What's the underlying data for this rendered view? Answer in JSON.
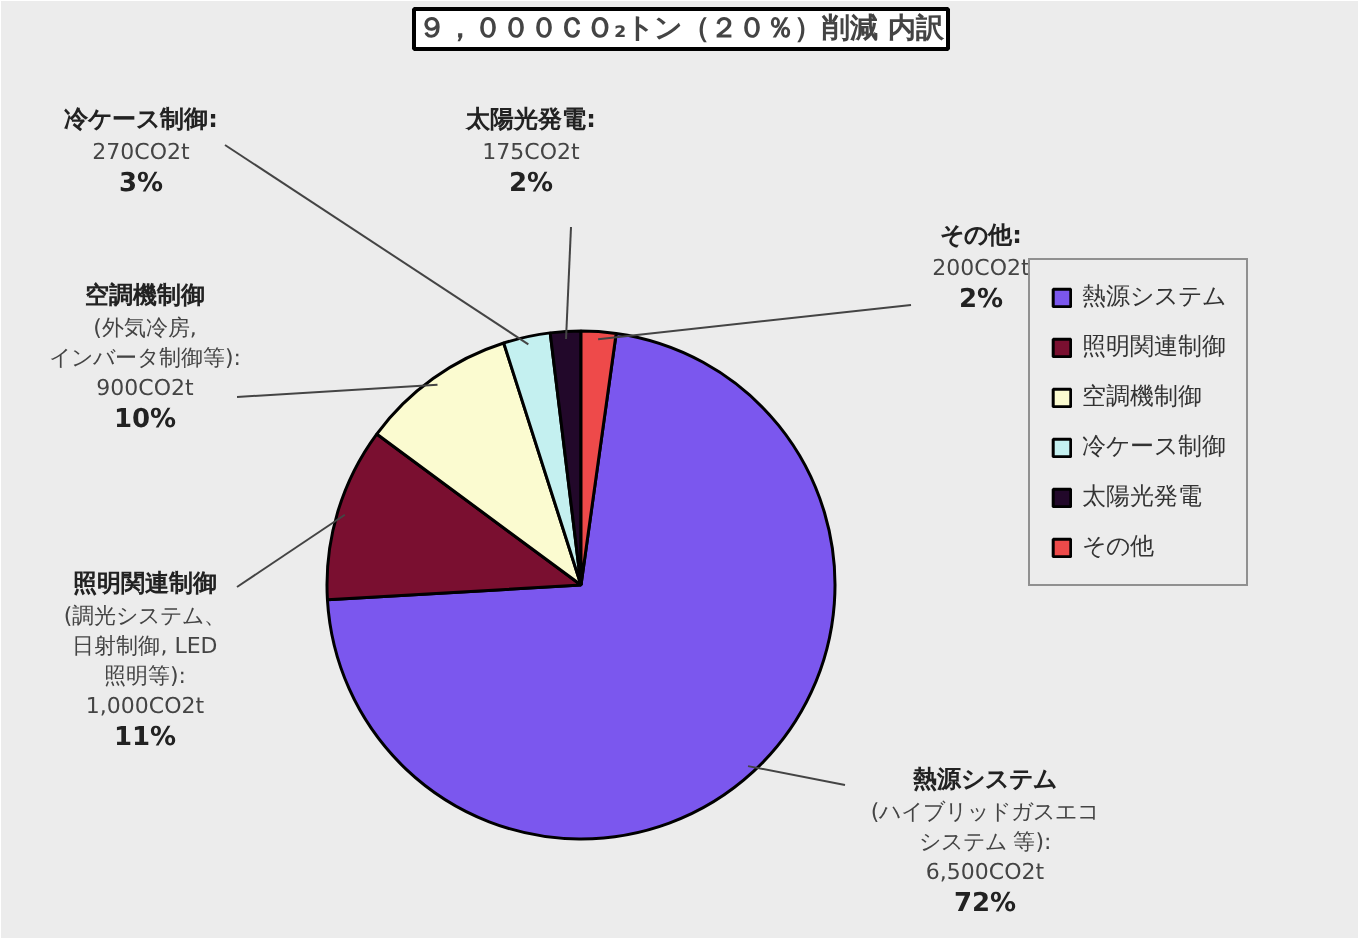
{
  "chart_data": {
    "type": "pie",
    "title": "９，０００ＣＯ₂トン（２０％）削減 内訳",
    "categories": [
      "熱源システム",
      "照明関連制御",
      "空調機制御",
      "冷ケース制御",
      "太陽光発電",
      "その他"
    ],
    "values": [
      6500,
      1000,
      900,
      270,
      175,
      200
    ],
    "colors": [
      "#7b57ee",
      "#7a0f30",
      "#fbfbd0",
      "#c4f0f0",
      "#22082a",
      "#ee4a4a"
    ],
    "value_labels": [
      "熱源システム\n(ハイブリッドガスエコシステム 等):\n6,500CO2t\n72%",
      "照明関連制御\n(調光システム、日射制御, LED照明等):\n1,000CO2t\n11%",
      "空調機制御\n(外気冷房, インバータ制御等):\n900CO2t\n10%",
      "冷ケース制御:\n270CO2t\n3%",
      "太陽光発電:\n175CO2t\n2%",
      "その他:\n200CO2t\n2%"
    ],
    "legend": "right"
  }
}
